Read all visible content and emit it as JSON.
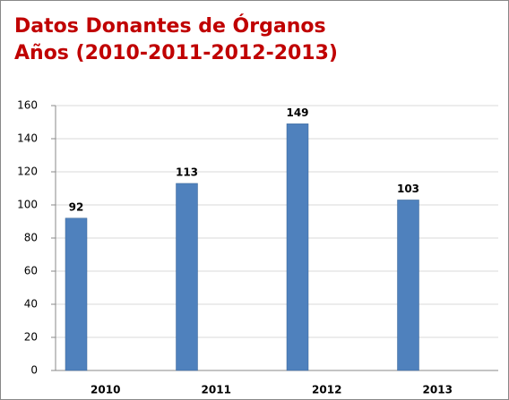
{
  "chart_data": {
    "type": "bar",
    "title": "Datos Donantes de Órganos",
    "subtitle": "Años (2010-2011-2012-2013)",
    "categories": [
      "2010",
      "2011",
      "2012",
      "2013"
    ],
    "values": [
      92,
      113,
      149,
      103
    ],
    "color": "#4f81bd",
    "ylim": [
      0,
      160
    ],
    "yticks": [
      0,
      20,
      40,
      60,
      80,
      100,
      120,
      140,
      160
    ],
    "grid": true
  }
}
